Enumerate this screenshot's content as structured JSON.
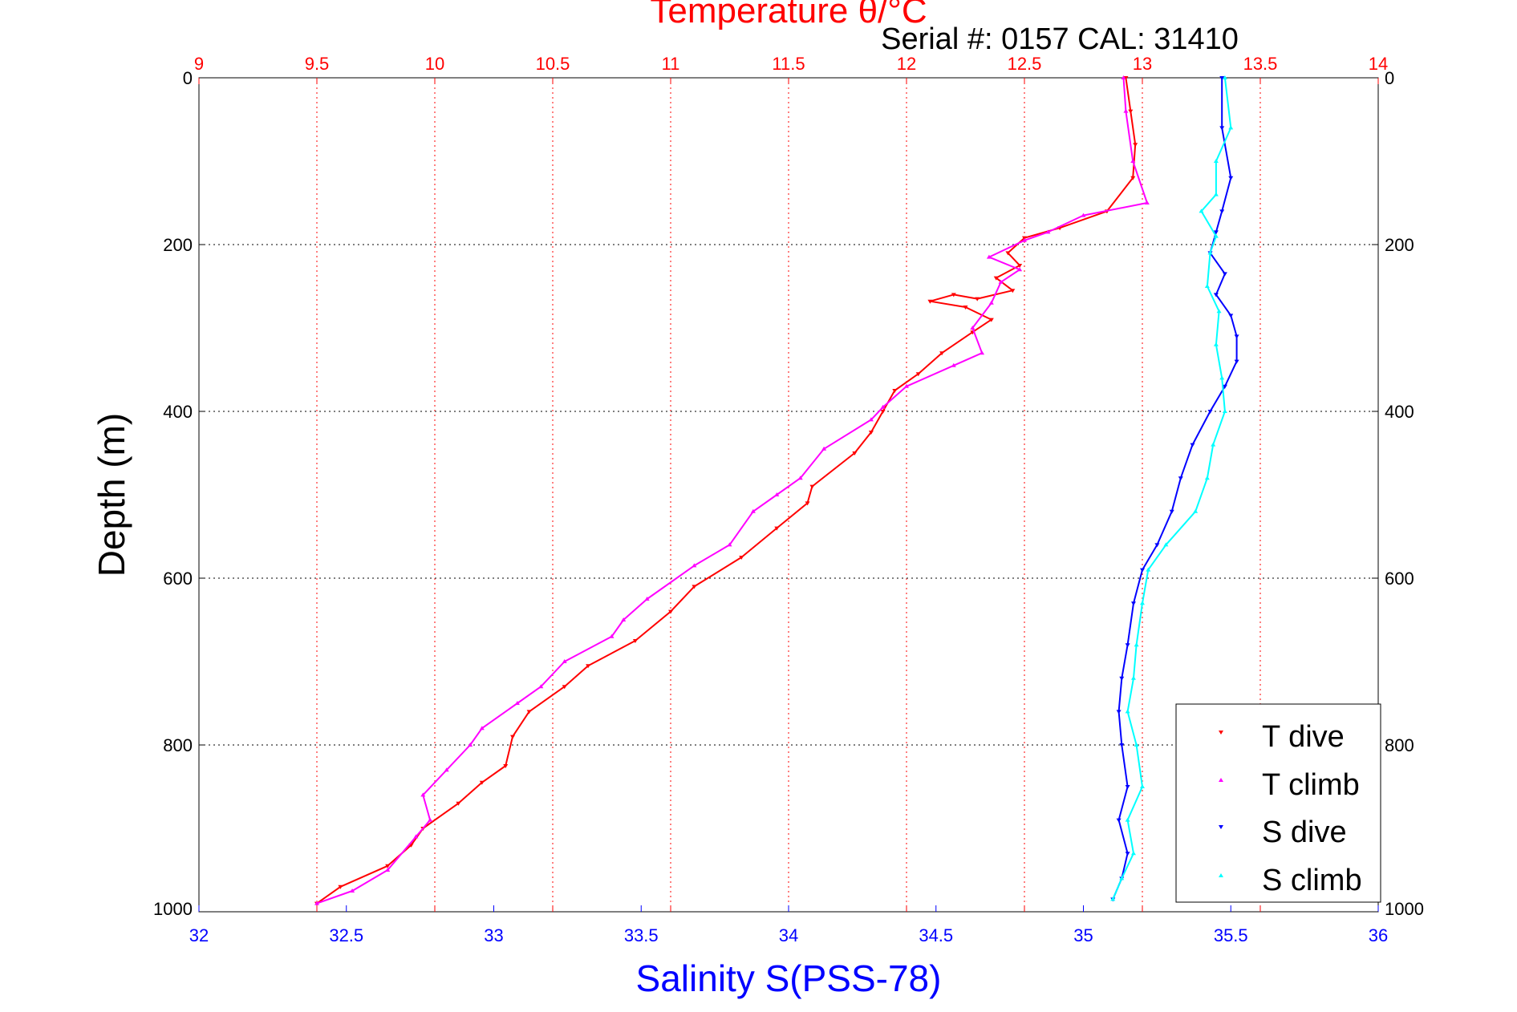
{
  "chart_data": {
    "type": "scatter",
    "title": "Temperature θ/°C",
    "subtitle": "Serial #: 0157  CAL: 31410",
    "xlabel": "Salinity S(PSS-78)",
    "ylabel": "Depth (m)",
    "x_top": {
      "label": "Temperature θ/°C",
      "lim": [
        9,
        14
      ],
      "ticks": [
        "9",
        "9.5",
        "10",
        "10.5",
        "11",
        "11.5",
        "12",
        "12.5",
        "13",
        "13.5",
        "14"
      ],
      "color": "#ff0000"
    },
    "x_bottom": {
      "label": "Salinity S(PSS-78)",
      "lim": [
        32,
        36
      ],
      "ticks": [
        "32",
        "32.5",
        "33",
        "33.5",
        "34",
        "34.5",
        "35",
        "35.5",
        "36"
      ],
      "color": "#0000ff"
    },
    "y": {
      "lim": [
        0,
        1000
      ],
      "reversed": true,
      "ticks": [
        "0",
        "200",
        "400",
        "600",
        "800",
        "1000"
      ]
    },
    "grid": true,
    "legend": {
      "placement": "bottom-right"
    },
    "series": [
      {
        "name": "T dive",
        "axis": "temperature",
        "color": "#ff0000",
        "marker": "triangle-down",
        "points": [
          [
            12.93,
            0
          ],
          [
            12.95,
            40
          ],
          [
            12.97,
            80
          ],
          [
            12.96,
            120
          ],
          [
            12.85,
            160
          ],
          [
            12.65,
            180
          ],
          [
            12.5,
            192
          ],
          [
            12.43,
            210
          ],
          [
            12.48,
            225
          ],
          [
            12.38,
            240
          ],
          [
            12.45,
            255
          ],
          [
            12.3,
            265
          ],
          [
            12.2,
            260
          ],
          [
            12.1,
            268
          ],
          [
            12.25,
            275
          ],
          [
            12.36,
            290
          ],
          [
            12.28,
            305
          ],
          [
            12.15,
            330
          ],
          [
            12.05,
            355
          ],
          [
            11.95,
            375
          ],
          [
            11.9,
            400
          ],
          [
            11.85,
            425
          ],
          [
            11.78,
            450
          ],
          [
            11.6,
            490
          ],
          [
            11.58,
            510
          ],
          [
            11.45,
            540
          ],
          [
            11.3,
            575
          ],
          [
            11.1,
            610
          ],
          [
            11,
            640
          ],
          [
            10.85,
            675
          ],
          [
            10.65,
            705
          ],
          [
            10.55,
            730
          ],
          [
            10.4,
            760
          ],
          [
            10.33,
            790
          ],
          [
            10.3,
            825
          ],
          [
            10.2,
            845
          ],
          [
            10.1,
            870
          ],
          [
            9.95,
            900
          ],
          [
            9.9,
            920
          ],
          [
            9.8,
            945
          ],
          [
            9.6,
            970
          ],
          [
            9.5,
            990
          ]
        ]
      },
      {
        "name": "T climb",
        "axis": "temperature",
        "color": "#ff00ff",
        "marker": "triangle-up",
        "points": [
          [
            12.92,
            0
          ],
          [
            12.93,
            40
          ],
          [
            12.96,
            100
          ],
          [
            13.02,
            150
          ],
          [
            12.75,
            165
          ],
          [
            12.6,
            185
          ],
          [
            12.5,
            195
          ],
          [
            12.35,
            215
          ],
          [
            12.48,
            230
          ],
          [
            12.4,
            245
          ],
          [
            12.36,
            270
          ],
          [
            12.28,
            300
          ],
          [
            12.32,
            330
          ],
          [
            12.2,
            345
          ],
          [
            12,
            370
          ],
          [
            11.9,
            395
          ],
          [
            11.85,
            410
          ],
          [
            11.65,
            445
          ],
          [
            11.55,
            480
          ],
          [
            11.45,
            500
          ],
          [
            11.35,
            520
          ],
          [
            11.25,
            560
          ],
          [
            11.1,
            585
          ],
          [
            10.9,
            625
          ],
          [
            10.8,
            650
          ],
          [
            10.75,
            670
          ],
          [
            10.55,
            700
          ],
          [
            10.45,
            730
          ],
          [
            10.35,
            750
          ],
          [
            10.2,
            780
          ],
          [
            10.15,
            800
          ],
          [
            10.05,
            830
          ],
          [
            9.95,
            860
          ],
          [
            9.98,
            890
          ],
          [
            9.92,
            910
          ],
          [
            9.8,
            950
          ],
          [
            9.65,
            975
          ],
          [
            9.5,
            990
          ]
        ]
      },
      {
        "name": "S dive",
        "axis": "salinity",
        "color": "#0000ff",
        "marker": "triangle-down",
        "points": [
          [
            35.47,
            0
          ],
          [
            35.47,
            60
          ],
          [
            35.5,
            120
          ],
          [
            35.47,
            160
          ],
          [
            35.45,
            185
          ],
          [
            35.43,
            210
          ],
          [
            35.48,
            235
          ],
          [
            35.45,
            260
          ],
          [
            35.5,
            285
          ],
          [
            35.52,
            310
          ],
          [
            35.52,
            340
          ],
          [
            35.48,
            370
          ],
          [
            35.43,
            400
          ],
          [
            35.37,
            440
          ],
          [
            35.33,
            480
          ],
          [
            35.3,
            520
          ],
          [
            35.25,
            560
          ],
          [
            35.2,
            590
          ],
          [
            35.17,
            630
          ],
          [
            35.15,
            680
          ],
          [
            35.13,
            720
          ],
          [
            35.12,
            760
          ],
          [
            35.13,
            800
          ],
          [
            35.15,
            850
          ],
          [
            35.12,
            890
          ],
          [
            35.15,
            930
          ],
          [
            35.13,
            960
          ],
          [
            35.1,
            985
          ]
        ]
      },
      {
        "name": "S climb",
        "axis": "salinity",
        "color": "#00ffff",
        "marker": "triangle-up",
        "points": [
          [
            35.48,
            0
          ],
          [
            35.5,
            60
          ],
          [
            35.45,
            100
          ],
          [
            35.45,
            140
          ],
          [
            35.4,
            160
          ],
          [
            35.45,
            190
          ],
          [
            35.43,
            210
          ],
          [
            35.42,
            250
          ],
          [
            35.46,
            280
          ],
          [
            35.45,
            320
          ],
          [
            35.47,
            360
          ],
          [
            35.48,
            400
          ],
          [
            35.44,
            440
          ],
          [
            35.42,
            480
          ],
          [
            35.38,
            520
          ],
          [
            35.28,
            560
          ],
          [
            35.22,
            590
          ],
          [
            35.2,
            630
          ],
          [
            35.18,
            680
          ],
          [
            35.17,
            720
          ],
          [
            35.15,
            760
          ],
          [
            35.18,
            800
          ],
          [
            35.2,
            850
          ],
          [
            35.15,
            890
          ],
          [
            35.17,
            930
          ],
          [
            35.13,
            960
          ],
          [
            35.1,
            985
          ]
        ]
      }
    ]
  }
}
